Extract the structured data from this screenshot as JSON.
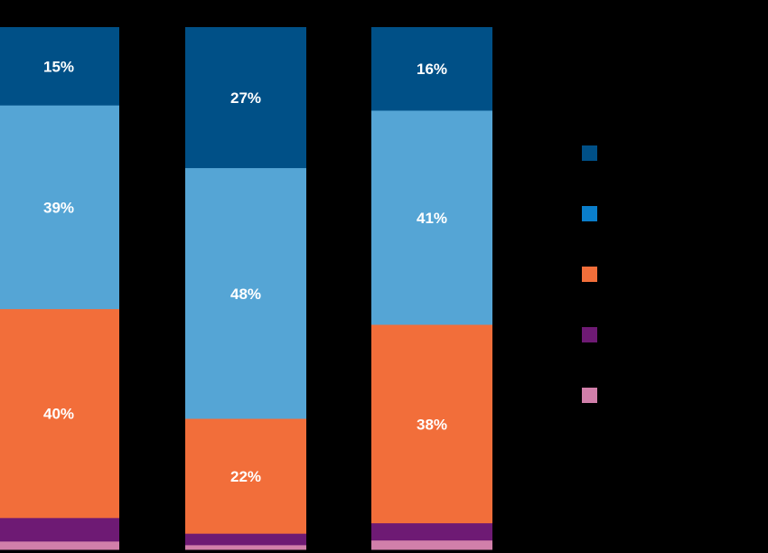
{
  "chart_data": {
    "type": "bar",
    "stacked": true,
    "orientation": "vertical",
    "normalized_percent": true,
    "title": "",
    "xlabel": "",
    "ylabel": "",
    "ylim": [
      0,
      100
    ],
    "grid": false,
    "legend_position": "right",
    "categories": [
      "",
      "",
      ""
    ],
    "series": [
      {
        "color": "#005087",
        "values": [
          15,
          27,
          16
        ],
        "labels": [
          "15%",
          "27%",
          "16%"
        ]
      },
      {
        "color": "#55A5D5",
        "values": [
          39,
          48,
          41
        ],
        "labels": [
          "39%",
          "48%",
          "41%"
        ]
      },
      {
        "color": "#F26E3A",
        "values": [
          40,
          22,
          38
        ],
        "labels": [
          "40%",
          "22%",
          "38%"
        ]
      },
      {
        "color": "#6E1A74",
        "values": [
          4.5,
          2.2,
          3.3
        ],
        "labels": [
          "",
          "",
          ""
        ]
      },
      {
        "color": "#D17FAA",
        "values": [
          1.5,
          0.8,
          1.7
        ],
        "labels": [
          "",
          "",
          ""
        ]
      }
    ],
    "legend": {
      "entries": [
        {
          "color": "#005087",
          "label": ""
        },
        {
          "color": "#0A7ECB",
          "label": ""
        },
        {
          "color": "#F26E3A",
          "label": ""
        },
        {
          "color": "#6E1A74",
          "label": ""
        },
        {
          "color": "#D17FAA",
          "label": ""
        }
      ]
    }
  }
}
